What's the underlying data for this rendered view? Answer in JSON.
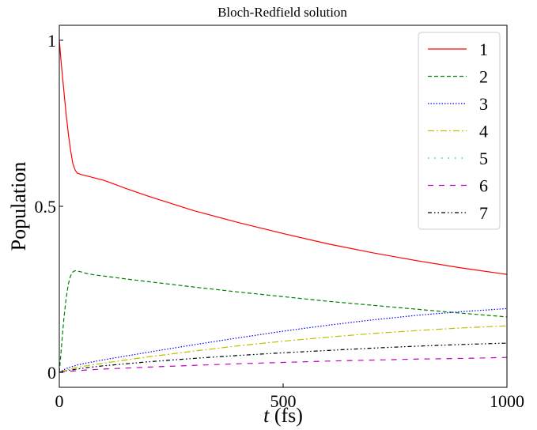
{
  "chart_data": {
    "type": "line",
    "title": "Bloch-Redfield solution",
    "xlabel_var": "t",
    "xlabel_unit": " (fs)",
    "ylabel": "Population",
    "xlim": [
      0,
      1000
    ],
    "ylim": [
      -0.045,
      1.045
    ],
    "xticks": [
      0,
      500,
      1000
    ],
    "xtick_labels": [
      "0",
      "500",
      "1000"
    ],
    "yticks": [
      0,
      0.5,
      1
    ],
    "ytick_labels": [
      "0",
      "0.5",
      "1"
    ],
    "grid": false,
    "legend_position": "top-right",
    "series": [
      {
        "name": "1",
        "color": "#ff0000",
        "dash": "",
        "x": [
          0,
          5,
          10,
          15,
          20,
          25,
          30,
          35,
          40,
          50,
          60,
          80,
          100,
          150,
          200,
          300,
          400,
          500,
          600,
          700,
          800,
          900,
          1000
        ],
        "y": [
          1.0,
          0.92,
          0.85,
          0.78,
          0.72,
          0.67,
          0.63,
          0.61,
          0.6,
          0.595,
          0.592,
          0.585,
          0.578,
          0.553,
          0.53,
          0.487,
          0.451,
          0.418,
          0.387,
          0.36,
          0.336,
          0.314,
          0.295
        ]
      },
      {
        "name": "2",
        "color": "#008000",
        "dash": "5,3",
        "x": [
          0,
          5,
          10,
          15,
          20,
          25,
          30,
          35,
          40,
          50,
          60,
          80,
          100,
          150,
          200,
          300,
          400,
          500,
          600,
          700,
          800,
          900,
          1000
        ],
        "y": [
          0.0,
          0.08,
          0.16,
          0.22,
          0.265,
          0.29,
          0.302,
          0.306,
          0.305,
          0.302,
          0.298,
          0.293,
          0.29,
          0.281,
          0.273,
          0.257,
          0.242,
          0.228,
          0.214,
          0.202,
          0.19,
          0.178,
          0.167
        ]
      },
      {
        "name": "3",
        "color": "#0000ff",
        "dash": "1.5,2",
        "x": [
          0,
          10,
          20,
          40,
          60,
          100,
          200,
          300,
          400,
          500,
          600,
          700,
          800,
          900,
          1000
        ],
        "y": [
          0.0,
          0.008,
          0.014,
          0.022,
          0.028,
          0.038,
          0.061,
          0.083,
          0.104,
          0.124,
          0.142,
          0.158,
          0.172,
          0.183,
          0.192
        ]
      },
      {
        "name": "4",
        "color": "#bfbf00",
        "dash": "8,3,2,3",
        "x": [
          0,
          10,
          20,
          40,
          60,
          100,
          200,
          300,
          400,
          500,
          600,
          700,
          800,
          900,
          1000
        ],
        "y": [
          0.0,
          0.005,
          0.009,
          0.015,
          0.02,
          0.028,
          0.047,
          0.064,
          0.08,
          0.094,
          0.106,
          0.117,
          0.126,
          0.134,
          0.14
        ]
      },
      {
        "name": "5",
        "color": "#00bfbf",
        "dash": "1.5,7",
        "x": [
          0,
          10,
          20,
          40,
          60,
          100,
          200,
          300,
          400,
          500,
          600,
          700,
          800,
          900,
          1000
        ],
        "y": [
          0.0,
          0.003,
          0.006,
          0.01,
          0.014,
          0.02,
          0.032,
          0.042,
          0.051,
          0.059,
          0.066,
          0.073,
          0.079,
          0.084,
          0.088
        ]
      },
      {
        "name": "6",
        "color": "#bf00bf",
        "dash": "7,7",
        "x": [
          0,
          10,
          20,
          40,
          60,
          100,
          200,
          300,
          400,
          500,
          600,
          700,
          800,
          900,
          1000
        ],
        "y": [
          0.0,
          0.002,
          0.003,
          0.005,
          0.007,
          0.01,
          0.016,
          0.021,
          0.026,
          0.03,
          0.034,
          0.037,
          0.04,
          0.042,
          0.045
        ]
      },
      {
        "name": "7",
        "color": "#000000",
        "dash": "5,3,1.5,3,1.5,3",
        "x": [
          0,
          10,
          20,
          40,
          60,
          100,
          200,
          300,
          400,
          500,
          600,
          700,
          800,
          900,
          1000
        ],
        "y": [
          0.0,
          0.003,
          0.006,
          0.01,
          0.014,
          0.02,
          0.032,
          0.042,
          0.051,
          0.059,
          0.066,
          0.073,
          0.079,
          0.084,
          0.088
        ]
      }
    ]
  }
}
